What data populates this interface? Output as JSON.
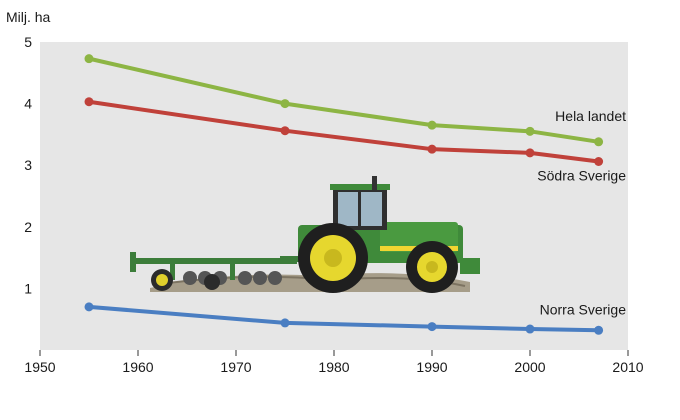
{
  "chart_data": {
    "type": "line",
    "title": "",
    "ylabel": "Milj. ha",
    "xlabel": "",
    "xlim": [
      1950,
      2010
    ],
    "ylim": [
      0,
      5
    ],
    "x_ticks": [
      1950,
      1960,
      1970,
      1980,
      1990,
      2000,
      2010
    ],
    "y_ticks": [
      1,
      2,
      3,
      4,
      5
    ],
    "grid": false,
    "background": "#e6e6e6",
    "series": [
      {
        "name": "Hela landet",
        "color": "#8db544",
        "points": [
          [
            1955,
            4.73
          ],
          [
            1975,
            4.0
          ],
          [
            1990,
            3.65
          ],
          [
            2000,
            3.55
          ],
          [
            2007,
            3.38
          ]
        ]
      },
      {
        "name": "Södra Sverige",
        "color": "#c0413a",
        "points": [
          [
            1955,
            4.03
          ],
          [
            1975,
            3.56
          ],
          [
            1990,
            3.26
          ],
          [
            2000,
            3.2
          ],
          [
            2007,
            3.06
          ]
        ]
      },
      {
        "name": "Norra Sverige",
        "color": "#4a7ec2",
        "points": [
          [
            1955,
            0.7
          ],
          [
            1975,
            0.44
          ],
          [
            1990,
            0.38
          ],
          [
            2000,
            0.34
          ],
          [
            2007,
            0.32
          ]
        ]
      }
    ],
    "decorative_image": "tractor-illustration"
  }
}
